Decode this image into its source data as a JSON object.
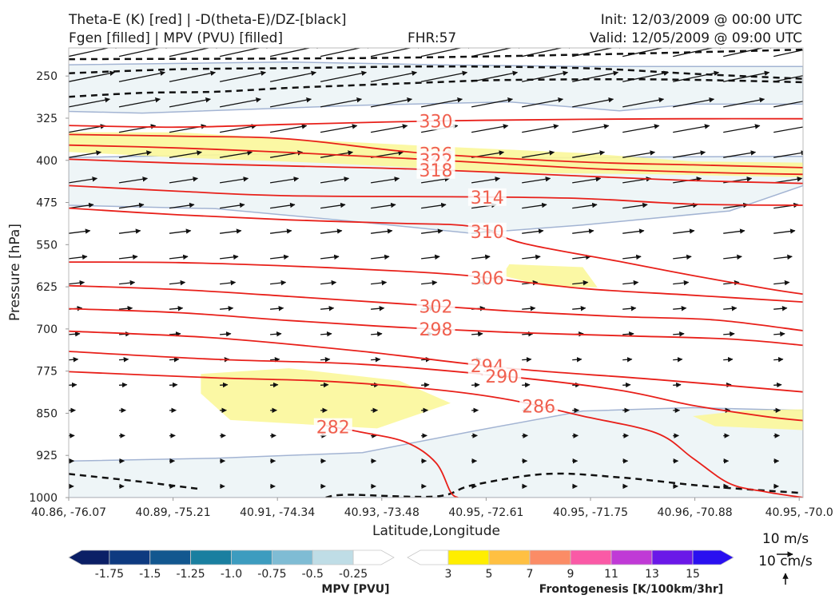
{
  "header": {
    "title_line1": "Theta-E (K) [red] | -D(theta-E)/DZ-[black]",
    "title_line2": "Fgen [filled] | MPV (PVU) [filled]",
    "fhr": "FHR:57",
    "init": "Init: 12/03/2009 @ 00:00 UTC",
    "valid": "Valid: 12/05/2009 @ 09:00 UTC"
  },
  "chart_data": {
    "type": "contour-cross-section",
    "xlabel": "Latitude,Longitude",
    "ylabel": "Pressure [hPa]",
    "x_ticks": [
      "40.86, -76.07",
      "40.89, -75.21",
      "40.91, -74.34",
      "40.93, -73.48",
      "40.95, -72.61",
      "40.95, -71.75",
      "40.96, -70.88",
      "40.95, -70.0"
    ],
    "y_ticks": [
      250,
      325,
      400,
      475,
      550,
      625,
      700,
      775,
      850,
      925,
      1000
    ],
    "ylim": [
      1000,
      200
    ],
    "y_inverted": true,
    "theta_e_contours": [
      {
        "label": "330",
        "pts": [
          [
            0,
            338
          ],
          [
            0.15,
            341
          ],
          [
            0.3,
            336
          ],
          [
            0.5,
            330
          ],
          [
            0.7,
            327
          ],
          [
            0.85,
            326
          ],
          [
            1,
            326
          ]
        ]
      },
      {
        "label": "326",
        "pts": [
          [
            0,
            354
          ],
          [
            0.15,
            357
          ],
          [
            0.3,
            362
          ],
          [
            0.48,
            387
          ],
          [
            0.7,
            403
          ],
          [
            0.85,
            408
          ],
          [
            1,
            413
          ]
        ]
      },
      {
        "label": "322",
        "pts": [
          [
            0,
            373
          ],
          [
            0.15,
            378
          ],
          [
            0.3,
            386
          ],
          [
            0.48,
            398
          ],
          [
            0.7,
            414
          ],
          [
            0.85,
            421
          ],
          [
            1,
            425
          ]
        ]
      },
      {
        "label": "318",
        "pts": [
          [
            0,
            398
          ],
          [
            0.15,
            405
          ],
          [
            0.3,
            410
          ],
          [
            0.48,
            416
          ],
          [
            0.7,
            428
          ],
          [
            0.85,
            436
          ],
          [
            1,
            441
          ]
        ]
      },
      {
        "label": "314",
        "pts": [
          [
            0,
            445
          ],
          [
            0.15,
            455
          ],
          [
            0.3,
            463
          ],
          [
            0.55,
            465
          ],
          [
            0.7,
            468
          ],
          [
            0.85,
            478
          ],
          [
            1,
            480
          ]
        ]
      },
      {
        "label": "310",
        "pts": [
          [
            0,
            485
          ],
          [
            0.15,
            497
          ],
          [
            0.3,
            506
          ],
          [
            0.45,
            512
          ],
          [
            0.55,
            518
          ],
          [
            0.62,
            548
          ],
          [
            0.75,
            580
          ],
          [
            0.85,
            605
          ],
          [
            0.95,
            628
          ],
          [
            1,
            638
          ]
        ]
      },
      {
        "label": "306",
        "pts": [
          [
            0,
            581
          ],
          [
            0.15,
            582
          ],
          [
            0.3,
            588
          ],
          [
            0.45,
            597
          ],
          [
            0.55,
            606
          ],
          [
            0.7,
            628
          ],
          [
            0.85,
            640
          ],
          [
            1,
            652
          ]
        ]
      },
      {
        "label": "302",
        "pts": [
          [
            0,
            623
          ],
          [
            0.15,
            630
          ],
          [
            0.3,
            642
          ],
          [
            0.45,
            655
          ],
          [
            0.6,
            668
          ],
          [
            0.75,
            678
          ],
          [
            0.88,
            684
          ],
          [
            1,
            703
          ]
        ]
      },
      {
        "label": "298",
        "pts": [
          [
            0,
            664
          ],
          [
            0.15,
            671
          ],
          [
            0.3,
            685
          ],
          [
            0.45,
            697
          ],
          [
            0.6,
            706
          ],
          [
            0.75,
            712
          ],
          [
            0.9,
            718
          ],
          [
            1,
            729
          ]
        ]
      },
      {
        "label": "294",
        "pts": [
          [
            0,
            704
          ],
          [
            0.2,
            716
          ],
          [
            0.4,
            740
          ],
          [
            0.6,
            770
          ],
          [
            0.8,
            790
          ],
          [
            1,
            812
          ]
        ]
      },
      {
        "label": "290",
        "pts": [
          [
            0,
            740
          ],
          [
            0.2,
            754
          ],
          [
            0.4,
            763
          ],
          [
            0.6,
            785
          ],
          [
            0.75,
            809
          ],
          [
            0.85,
            836
          ],
          [
            0.95,
            856
          ],
          [
            1,
            863
          ]
        ]
      },
      {
        "label": "286",
        "pts": [
          [
            0,
            776
          ],
          [
            0.2,
            787
          ],
          [
            0.35,
            793
          ],
          [
            0.5,
            808
          ],
          [
            0.6,
            826
          ],
          [
            0.7,
            855
          ],
          [
            0.8,
            885
          ],
          [
            0.85,
            930
          ],
          [
            0.9,
            975
          ],
          [
            0.95,
            990
          ],
          [
            1,
            1000
          ]
        ]
      },
      {
        "label": "282",
        "pts": [
          [
            0.35,
            872
          ],
          [
            0.4,
            884
          ],
          [
            0.46,
            902
          ],
          [
            0.5,
            938
          ],
          [
            0.52,
            990
          ],
          [
            0.53,
            1000
          ]
        ]
      }
    ],
    "stability_contours": [
      {
        "pts": [
          [
            0,
            220
          ],
          [
            0.4,
            218
          ],
          [
            0.7,
            212
          ],
          [
            1,
            203
          ]
        ]
      },
      {
        "pts": [
          [
            0,
            245
          ],
          [
            0.15,
            238
          ],
          [
            0.3,
            236
          ],
          [
            0.5,
            233
          ],
          [
            0.7,
            236
          ],
          [
            0.85,
            246
          ],
          [
            1,
            255
          ]
        ]
      },
      {
        "pts": [
          [
            0,
            287
          ],
          [
            0.1,
            280
          ],
          [
            0.2,
            278
          ],
          [
            0.3,
            271
          ],
          [
            0.4,
            266
          ],
          [
            0.5,
            261
          ],
          [
            0.6,
            257
          ],
          [
            0.8,
            256
          ],
          [
            1,
            261
          ]
        ]
      },
      {
        "pts": [
          [
            0,
            958
          ],
          [
            0.1,
            972
          ],
          [
            0.18,
            985
          ]
        ]
      },
      {
        "pts": [
          [
            0.35,
            1000
          ],
          [
            0.38,
            995
          ],
          [
            0.5,
            998
          ],
          [
            0.55,
            978
          ],
          [
            0.65,
            958
          ],
          [
            0.75,
            964
          ],
          [
            0.87,
            980
          ],
          [
            1,
            992
          ]
        ]
      }
    ],
    "mpv_region_boundaries": [
      {
        "pts": [
          [
            0,
            230
          ],
          [
            0.3,
            225
          ],
          [
            0.5,
            230
          ],
          [
            0.7,
            233
          ],
          [
            1,
            233
          ],
          [
            1,
            300
          ],
          [
            0.85,
            300
          ],
          [
            0.75,
            312
          ],
          [
            0.6,
            296
          ],
          [
            0.4,
            302
          ],
          [
            0.1,
            316
          ],
          [
            0,
            313
          ]
        ]
      },
      {
        "pts": [
          [
            0,
            395
          ],
          [
            0.3,
            388
          ],
          [
            0.6,
            396
          ],
          [
            0.8,
            394
          ],
          [
            1,
            393
          ],
          [
            1,
            445
          ],
          [
            0.9,
            490
          ],
          [
            0.7,
            515
          ],
          [
            0.55,
            530
          ],
          [
            0.4,
            510
          ],
          [
            0.2,
            486
          ],
          [
            0,
            480
          ]
        ]
      },
      {
        "pts": [
          [
            0,
            935
          ],
          [
            0.2,
            930
          ],
          [
            0.4,
            920
          ],
          [
            0.55,
            882
          ],
          [
            0.7,
            846
          ],
          [
            0.85,
            840
          ],
          [
            1,
            845
          ],
          [
            1,
            1000
          ],
          [
            0,
            1000
          ]
        ]
      }
    ],
    "fgen_regions": [
      {
        "pts": [
          [
            0,
            350
          ],
          [
            0.15,
            350
          ],
          [
            0.3,
            362
          ],
          [
            0.5,
            375
          ],
          [
            0.7,
            387
          ],
          [
            0.85,
            402
          ],
          [
            1,
            404
          ],
          [
            1,
            430
          ],
          [
            0.8,
            425
          ],
          [
            0.6,
            422
          ],
          [
            0.35,
            405
          ],
          [
            0.15,
            395
          ],
          [
            0,
            385
          ]
        ]
      },
      {
        "pts": [
          [
            0.6,
            585
          ],
          [
            0.7,
            590
          ],
          [
            0.72,
            626
          ],
          [
            0.65,
            624
          ],
          [
            0.59,
            605
          ]
        ]
      },
      {
        "pts": [
          [
            0.18,
            780
          ],
          [
            0.3,
            770
          ],
          [
            0.45,
            792
          ],
          [
            0.52,
            832
          ],
          [
            0.42,
            877
          ],
          [
            0.22,
            862
          ],
          [
            0.18,
            815
          ]
        ]
      },
      {
        "pts": [
          [
            0.85,
            855
          ],
          [
            0.92,
            845
          ],
          [
            1,
            843
          ],
          [
            1,
            880
          ],
          [
            0.88,
            873
          ]
        ]
      }
    ],
    "wind_vector_key": {
      "x_label": "10 m/s",
      "y_label": "10 cm/s"
    },
    "colorbars": [
      {
        "title": "MPV [PVU]",
        "ticks": [
          "-1.75",
          "-1.5",
          "-1.25",
          "-1.0",
          "-0.75",
          "-0.5",
          "-0.25"
        ],
        "colors": [
          "#0b1f66",
          "#0e3a80",
          "#12578f",
          "#1a7fa0",
          "#3d9cbf",
          "#7fbcd4",
          "#bfdde6",
          "#ffffff"
        ]
      },
      {
        "title": "Frontogenesis [K/100km/3hr]",
        "ticks": [
          "3",
          "5",
          "7",
          "9",
          "11",
          "13",
          "15"
        ],
        "colors": [
          "#ffffff",
          "#ffee00",
          "#ffc042",
          "#fb8c66",
          "#fa5aa6",
          "#c03ad6",
          "#6a18e8",
          "#2a10f0"
        ]
      }
    ]
  }
}
